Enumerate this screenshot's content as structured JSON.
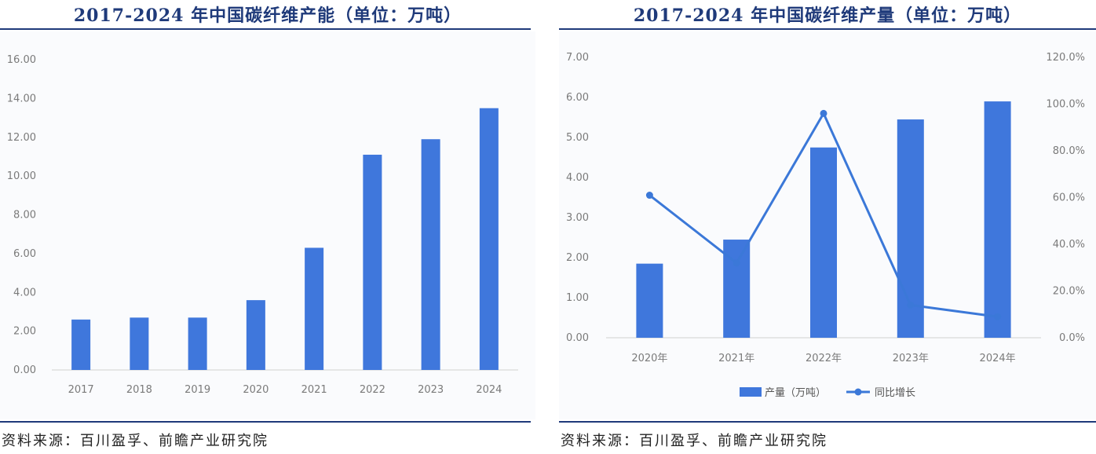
{
  "left": {
    "title": "2017-2024 年中国碳纤维产能（单位：万吨）",
    "source": "资料来源：百川盈孚、前瞻产业研究院"
  },
  "right": {
    "title": "2017-2024 年中国碳纤维产量（单位：万吨）",
    "source": "资料来源：百川盈孚、前瞻产业研究院"
  },
  "colors": {
    "title": "#1f3a7a",
    "bar": "#3f77dc",
    "line": "#3b78d8"
  },
  "chart_data": [
    {
      "type": "bar",
      "title": "2017-2024 年中国碳纤维产能（单位：万吨）",
      "categories": [
        "2017",
        "2018",
        "2019",
        "2020",
        "2021",
        "2022",
        "2023",
        "2024"
      ],
      "values": [
        2.6,
        2.7,
        2.7,
        3.6,
        6.3,
        11.1,
        11.9,
        13.5
      ],
      "yticks": [
        "0.00",
        "2.00",
        "4.00",
        "6.00",
        "8.00",
        "10.00",
        "12.00",
        "14.00",
        "16.00"
      ],
      "ylim": [
        0,
        16
      ],
      "grid": false
    },
    {
      "type": "bar+line",
      "title": "2017-2024 年中国碳纤维产量（单位：万吨）",
      "categories": [
        "2020年",
        "2021年",
        "2022年",
        "2023年",
        "2024年"
      ],
      "series": [
        {
          "name": "产量（万吨）",
          "type": "bar",
          "axis": "left",
          "values": [
            1.85,
            2.45,
            4.75,
            5.45,
            5.9
          ]
        },
        {
          "name": "同比增长",
          "type": "line",
          "axis": "right",
          "values": [
            0.61,
            0.32,
            0.96,
            0.14,
            0.09
          ]
        }
      ],
      "yticks_left": [
        "0.00",
        "1.00",
        "2.00",
        "3.00",
        "4.00",
        "5.00",
        "6.00",
        "7.00"
      ],
      "ylim_left": [
        0,
        7
      ],
      "yticks_right": [
        "0.0%",
        "20.0%",
        "40.0%",
        "60.0%",
        "80.0%",
        "100.0%",
        "120.0%"
      ],
      "ylim_right": [
        0,
        1.2
      ],
      "legend_position": "bottom",
      "grid": false
    }
  ]
}
